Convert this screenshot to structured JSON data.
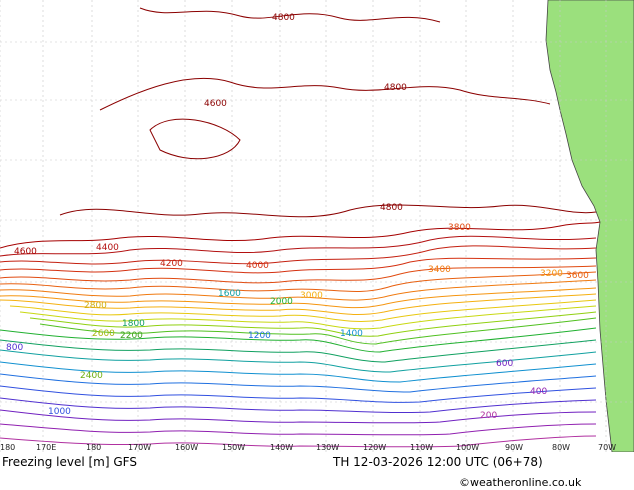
{
  "map": {
    "colors": {
      "background": "#ffffff",
      "grid": "#c8c8c8",
      "coast": "#444444",
      "land": "#9be07d"
    },
    "lon_labels": [
      "180",
      "170E",
      "180",
      "170W",
      "160W",
      "150W",
      "140W",
      "130W",
      "120W",
      "110W",
      "100W",
      "90W",
      "80W",
      "70W"
    ],
    "contour_labels": {
      "l4800": "4800",
      "l4600": "4600",
      "l4400": "4400",
      "l4200": "4200",
      "l4000": "4000",
      "l3800": "3800",
      "l3600": "3600",
      "l3400": "3400",
      "l3200": "3200",
      "l3000": "3000",
      "l2800": "2800",
      "l2600": "2600",
      "l2400": "2400",
      "l2200": "2200",
      "l2000": "2000",
      "l1800": "1800",
      "l1600": "1600",
      "l1400": "1400",
      "l1200": "1200",
      "l1000": "1000",
      "l800": "800",
      "l600": "600",
      "l400": "400",
      "l200": "200"
    }
  },
  "footer": {
    "title": "Freezing level [m] GFS",
    "valid": "TH 12-03-2026 12:00 UTC (06+78)",
    "credit": "©weatheronline.co.uk"
  }
}
